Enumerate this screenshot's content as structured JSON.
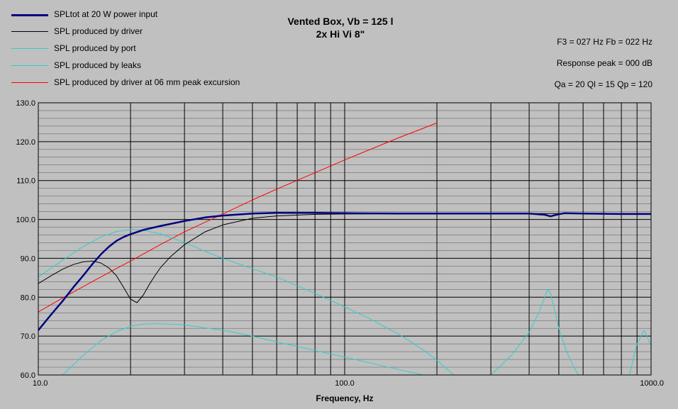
{
  "header": {
    "title_line1": "Vented Box, Vb = 125 l",
    "title_line2": "2x Hi Vi 8\"",
    "info_f3_fb": "F3 = 027 Hz  Fb = 022 Hz",
    "info_peak": "Response peak = 000 dB",
    "info_q": "Qa = 20  Ql = 15  Qp = 120"
  },
  "legend": {
    "items": [
      {
        "label": "SPLtot at 20 W power input",
        "color": "#000080",
        "width": 2.5
      },
      {
        "label": "SPL produced by driver",
        "color": "#000000",
        "width": 1
      },
      {
        "label": "SPL produced by port",
        "color": "#33cccc",
        "width": 1
      },
      {
        "label": "SPL produced by leaks",
        "color": "#33cccc",
        "width": 1
      },
      {
        "label": "SPL produced by driver at 06 mm peak excursion",
        "color": "#ff0000",
        "width": 1
      }
    ]
  },
  "chart_data": {
    "type": "line",
    "title": "Vented Box, Vb = 125 l / 2x Hi Vi 8\"",
    "xlabel": "Frequency, Hz",
    "ylabel": "",
    "x_scale": "log",
    "xlim": [
      10,
      1000
    ],
    "ylim": [
      60,
      130
    ],
    "grid": true,
    "legend_position": "top-left",
    "x_ticks": [
      "10.0",
      "100.0",
      "1000.0"
    ],
    "y_ticks": [
      "60.0",
      "70.0",
      "80.0",
      "90.0",
      "100.0",
      "110.0",
      "120.0",
      "130.0"
    ],
    "series": [
      {
        "name": "SPLtot at 20 W power input",
        "color": "#000080",
        "x": [
          10,
          11,
          12,
          13,
          14,
          15,
          16,
          17,
          18,
          19,
          20,
          22,
          25,
          30,
          35,
          40,
          50,
          60,
          70,
          80,
          100,
          150,
          200,
          300,
          400,
          450,
          470,
          490,
          520,
          600,
          800,
          1000
        ],
        "y": [
          71.5,
          75.5,
          79,
          82.5,
          85.5,
          88.5,
          91,
          93,
          94.5,
          95.5,
          96.2,
          97.3,
          98.3,
          99.6,
          100.5,
          101.0,
          101.5,
          101.7,
          101.7,
          101.7,
          101.6,
          101.5,
          101.5,
          101.5,
          101.5,
          101.2,
          100.8,
          101.2,
          101.6,
          101.5,
          101.4,
          101.4
        ]
      },
      {
        "name": "SPL produced by driver",
        "color": "#000000",
        "x": [
          10,
          11,
          12,
          13,
          14,
          15,
          16,
          17,
          18,
          19,
          20,
          21,
          22,
          23,
          24,
          25,
          27,
          30,
          35,
          40,
          50,
          60,
          80,
          100,
          150,
          200,
          1000
        ],
        "y": [
          83.5,
          85.5,
          87.2,
          88.4,
          89.1,
          89.3,
          88.8,
          87.5,
          85.5,
          82.5,
          79.5,
          78.6,
          80.5,
          83.2,
          85.5,
          87.5,
          90.4,
          93.5,
          96.8,
          98.6,
          100.3,
          100.9,
          101.3,
          101.4,
          101.5,
          101.5,
          101.5
        ]
      },
      {
        "name": "SPL produced by port",
        "color": "#33cccc",
        "x": [
          10,
          12,
          14,
          16,
          18,
          20,
          22,
          25,
          30,
          35,
          40,
          50,
          60,
          80,
          100,
          120,
          150,
          180,
          200,
          230,
          250,
          300,
          350,
          400,
          430,
          450,
          460,
          470,
          480,
          500,
          530,
          560,
          600
        ],
        "y": [
          85.2,
          89.5,
          93.0,
          95.5,
          96.9,
          97.4,
          97.2,
          96.3,
          94.1,
          91.8,
          90.0,
          87.3,
          85.2,
          81.0,
          77.5,
          74.6,
          70.5,
          66.5,
          63.8,
          59.6,
          57.5,
          60,
          65,
          71,
          76,
          80,
          82,
          81,
          78,
          72,
          66,
          62,
          58
        ]
      },
      {
        "name": "SPL produced by leaks",
        "color": "#33cccc",
        "x": [
          12,
          14,
          16,
          18,
          20,
          22,
          25,
          30,
          40,
          50,
          60,
          80,
          100,
          150,
          180,
          200,
          250,
          300,
          350,
          400,
          500,
          600,
          700,
          800,
          850,
          900,
          950,
          1000
        ],
        "y": [
          60,
          65,
          68.8,
          71.2,
          72.5,
          73.1,
          73.2,
          72.9,
          71.5,
          70.0,
          68.5,
          66.3,
          64.6,
          61.4,
          60.0,
          59.0,
          57,
          56,
          55,
          55,
          55,
          55,
          55,
          56,
          60,
          68,
          71.5,
          67.5
        ]
      },
      {
        "name": "SPL produced by driver at 06 mm peak excursion",
        "color": "#ff0000",
        "x": [
          10,
          12,
          15,
          18,
          20,
          25,
          30,
          40,
          50,
          60,
          80,
          100,
          150,
          200
        ],
        "y": [
          76.2,
          79.8,
          84.0,
          87.4,
          89.3,
          93.5,
          96.8,
          101.4,
          105.0,
          107.8,
          112.0,
          115.3,
          121.0,
          124.8
        ]
      }
    ]
  }
}
